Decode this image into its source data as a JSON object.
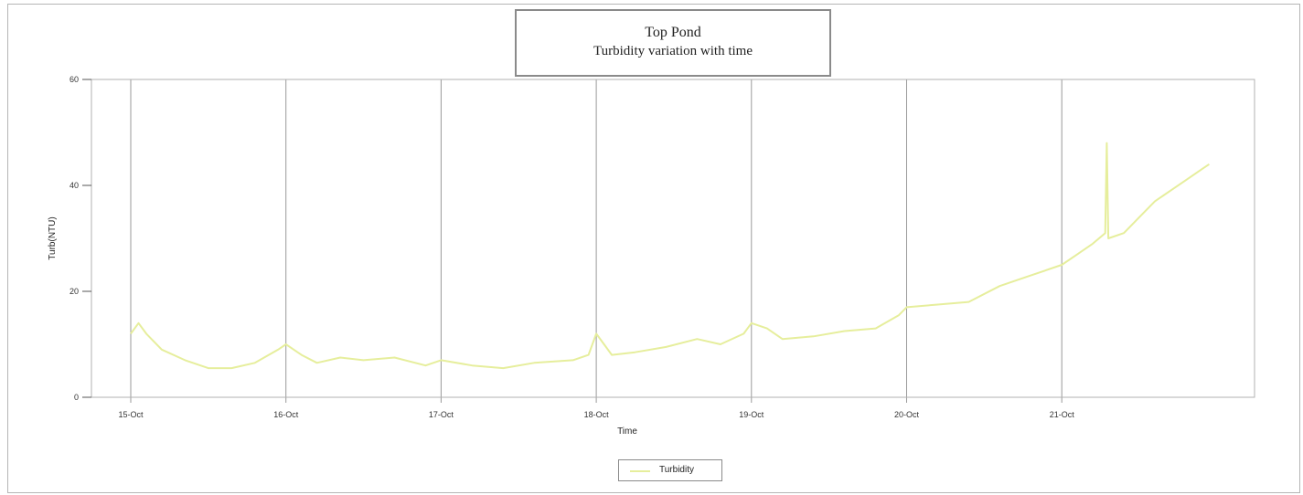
{
  "chart_data": {
    "type": "line",
    "title": "Top Pond",
    "subtitle": "Turbidity variation with time",
    "xlabel": "Time",
    "ylabel": "Turb(NTU)",
    "ylim": [
      0,
      60
    ],
    "yticks": [
      0,
      20,
      40,
      60
    ],
    "x_tick_labels": [
      "15-Oct",
      "16-Oct",
      "17-Oct",
      "18-Oct",
      "19-Oct",
      "20-Oct",
      "21-Oct"
    ],
    "x_unit": "days",
    "grid": "vertical",
    "legend_placement": "bottom-center",
    "series": [
      {
        "name": "Turbidity",
        "color": "#e6ee9c",
        "x": [
          15.0,
          15.05,
          15.1,
          15.2,
          15.35,
          15.5,
          15.65,
          15.8,
          15.95,
          16.0,
          16.1,
          16.2,
          16.35,
          16.5,
          16.7,
          16.9,
          17.0,
          17.2,
          17.4,
          17.6,
          17.85,
          17.95,
          18.0,
          18.05,
          18.1,
          18.25,
          18.45,
          18.65,
          18.8,
          18.95,
          19.0,
          19.1,
          19.2,
          19.4,
          19.6,
          19.8,
          19.95,
          20.0,
          20.2,
          20.4,
          20.6,
          20.8,
          21.0,
          21.1,
          21.2,
          21.28,
          21.29,
          21.3,
          21.4,
          21.5,
          21.6,
          21.7,
          21.8,
          21.9,
          21.95
        ],
        "y": [
          12,
          14,
          12,
          9,
          7,
          5.5,
          5.5,
          6.5,
          9,
          10,
          8,
          6.5,
          7.5,
          7,
          7.5,
          6,
          7,
          6,
          5.5,
          6.5,
          7,
          8,
          12,
          10,
          8,
          8.5,
          9.5,
          11,
          10,
          12,
          14,
          13,
          11,
          11.5,
          12.5,
          13,
          15.5,
          17,
          17.5,
          18,
          21,
          23,
          25,
          27,
          29,
          31,
          48,
          30,
          31,
          34,
          37,
          39,
          41,
          43,
          44
        ]
      }
    ]
  },
  "legend": {
    "label": "Turbidity"
  }
}
